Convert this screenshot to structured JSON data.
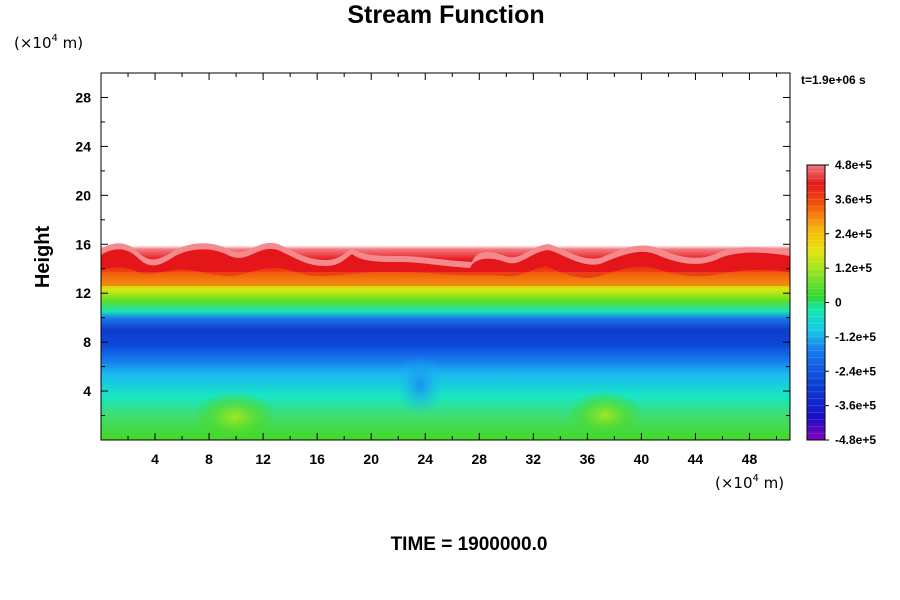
{
  "chart_data": {
    "type": "heatmap",
    "title": "Stream Function",
    "ylabel": "Height",
    "xlabel": "",
    "x_unit": "(×10",
    "x_unit_exp": "4",
    "x_unit_tail": " m)",
    "y_unit": "(×10",
    "y_unit_exp": "4",
    "y_unit_tail": " m)",
    "xlim": [
      0,
      51
    ],
    "ylim": [
      0,
      30
    ],
    "x_ticks": [
      "4",
      "8",
      "12",
      "16",
      "20",
      "24",
      "28",
      "32",
      "36",
      "40",
      "44",
      "48"
    ],
    "x_tick_values": [
      4,
      8,
      12,
      16,
      20,
      24,
      28,
      32,
      36,
      40,
      44,
      48
    ],
    "y_ticks": [
      "4",
      "8",
      "12",
      "16",
      "20",
      "24",
      "28"
    ],
    "y_tick_values": [
      4,
      8,
      12,
      16,
      20,
      24,
      28
    ],
    "time_label": "t=1.9e+06 s",
    "footer": "TIME = 1900000.0",
    "colorbar": {
      "min": -480000,
      "max": 480000,
      "labels": [
        "4.8e+5",
        "3.6e+5",
        "2.4e+5",
        "1.2e+5",
        "0",
        "-1.2e+5",
        "-2.4e+5",
        "-3.6e+5",
        "-4.8e+5"
      ],
      "values": [
        480000,
        360000,
        240000,
        120000,
        0,
        -120000,
        -240000,
        -360000,
        -480000
      ]
    },
    "field_summary": {
      "bands": [
        {
          "from_height": 0,
          "to_height": 4,
          "value": 20000
        },
        {
          "from_height": 4,
          "to_height": 8,
          "value": -220000
        },
        {
          "from_height": 8,
          "to_height": 10,
          "value": -380000
        },
        {
          "from_height": 10,
          "to_height": 12,
          "value": 80000
        },
        {
          "from_height": 12,
          "to_height": 15,
          "value": 400000
        }
      ],
      "top_boundary_height_range": [
        13.5,
        15.5
      ]
    }
  },
  "colors": {
    "colormap": [
      "#8a00b8",
      "#1b10c8",
      "#0b3fd6",
      "#1779ee",
      "#19c8e6",
      "#12e6b0",
      "#2fd938",
      "#9fe61e",
      "#e8e212",
      "#f7b10e",
      "#f25a0c",
      "#e31a18",
      "#f07b80"
    ],
    "frame": "#000000",
    "background": "#ffffff"
  }
}
